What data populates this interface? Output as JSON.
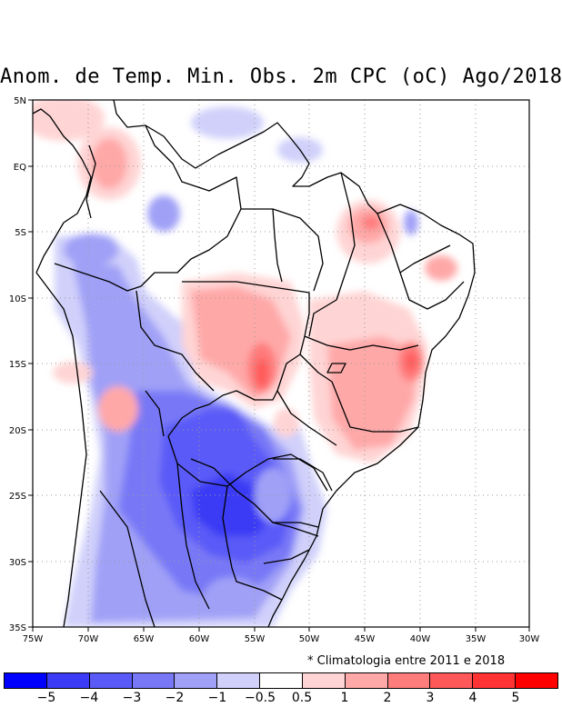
{
  "title": "Anom. de Temp. Min. Obs. 2m CPC (oC) Ago/2018",
  "note": "* Climatologia entre 2011 e 2018",
  "longitude_labels": [
    "75W",
    "70W",
    "65W",
    "60W",
    "55W",
    "50W",
    "45W",
    "40W",
    "35W",
    "30W"
  ],
  "latitude_labels": [
    "5N",
    "EQ",
    "5S",
    "10S",
    "15S",
    "20S",
    "25S",
    "30S",
    "35S"
  ],
  "legend": {
    "colors": [
      "#0000ff",
      "#3b3bf5",
      "#5a5af8",
      "#7878f7",
      "#a0a0f7",
      "#d0d0fb",
      "#ffffff",
      "#ffd4d4",
      "#ffa8a8",
      "#ff7c7c",
      "#ff5858",
      "#ff3333",
      "#ff0000"
    ],
    "labels": [
      "−5",
      "−4",
      "−3",
      "−2",
      "−1",
      "−0.5",
      "0.5",
      "1",
      "2",
      "3",
      "4",
      "5"
    ]
  }
}
